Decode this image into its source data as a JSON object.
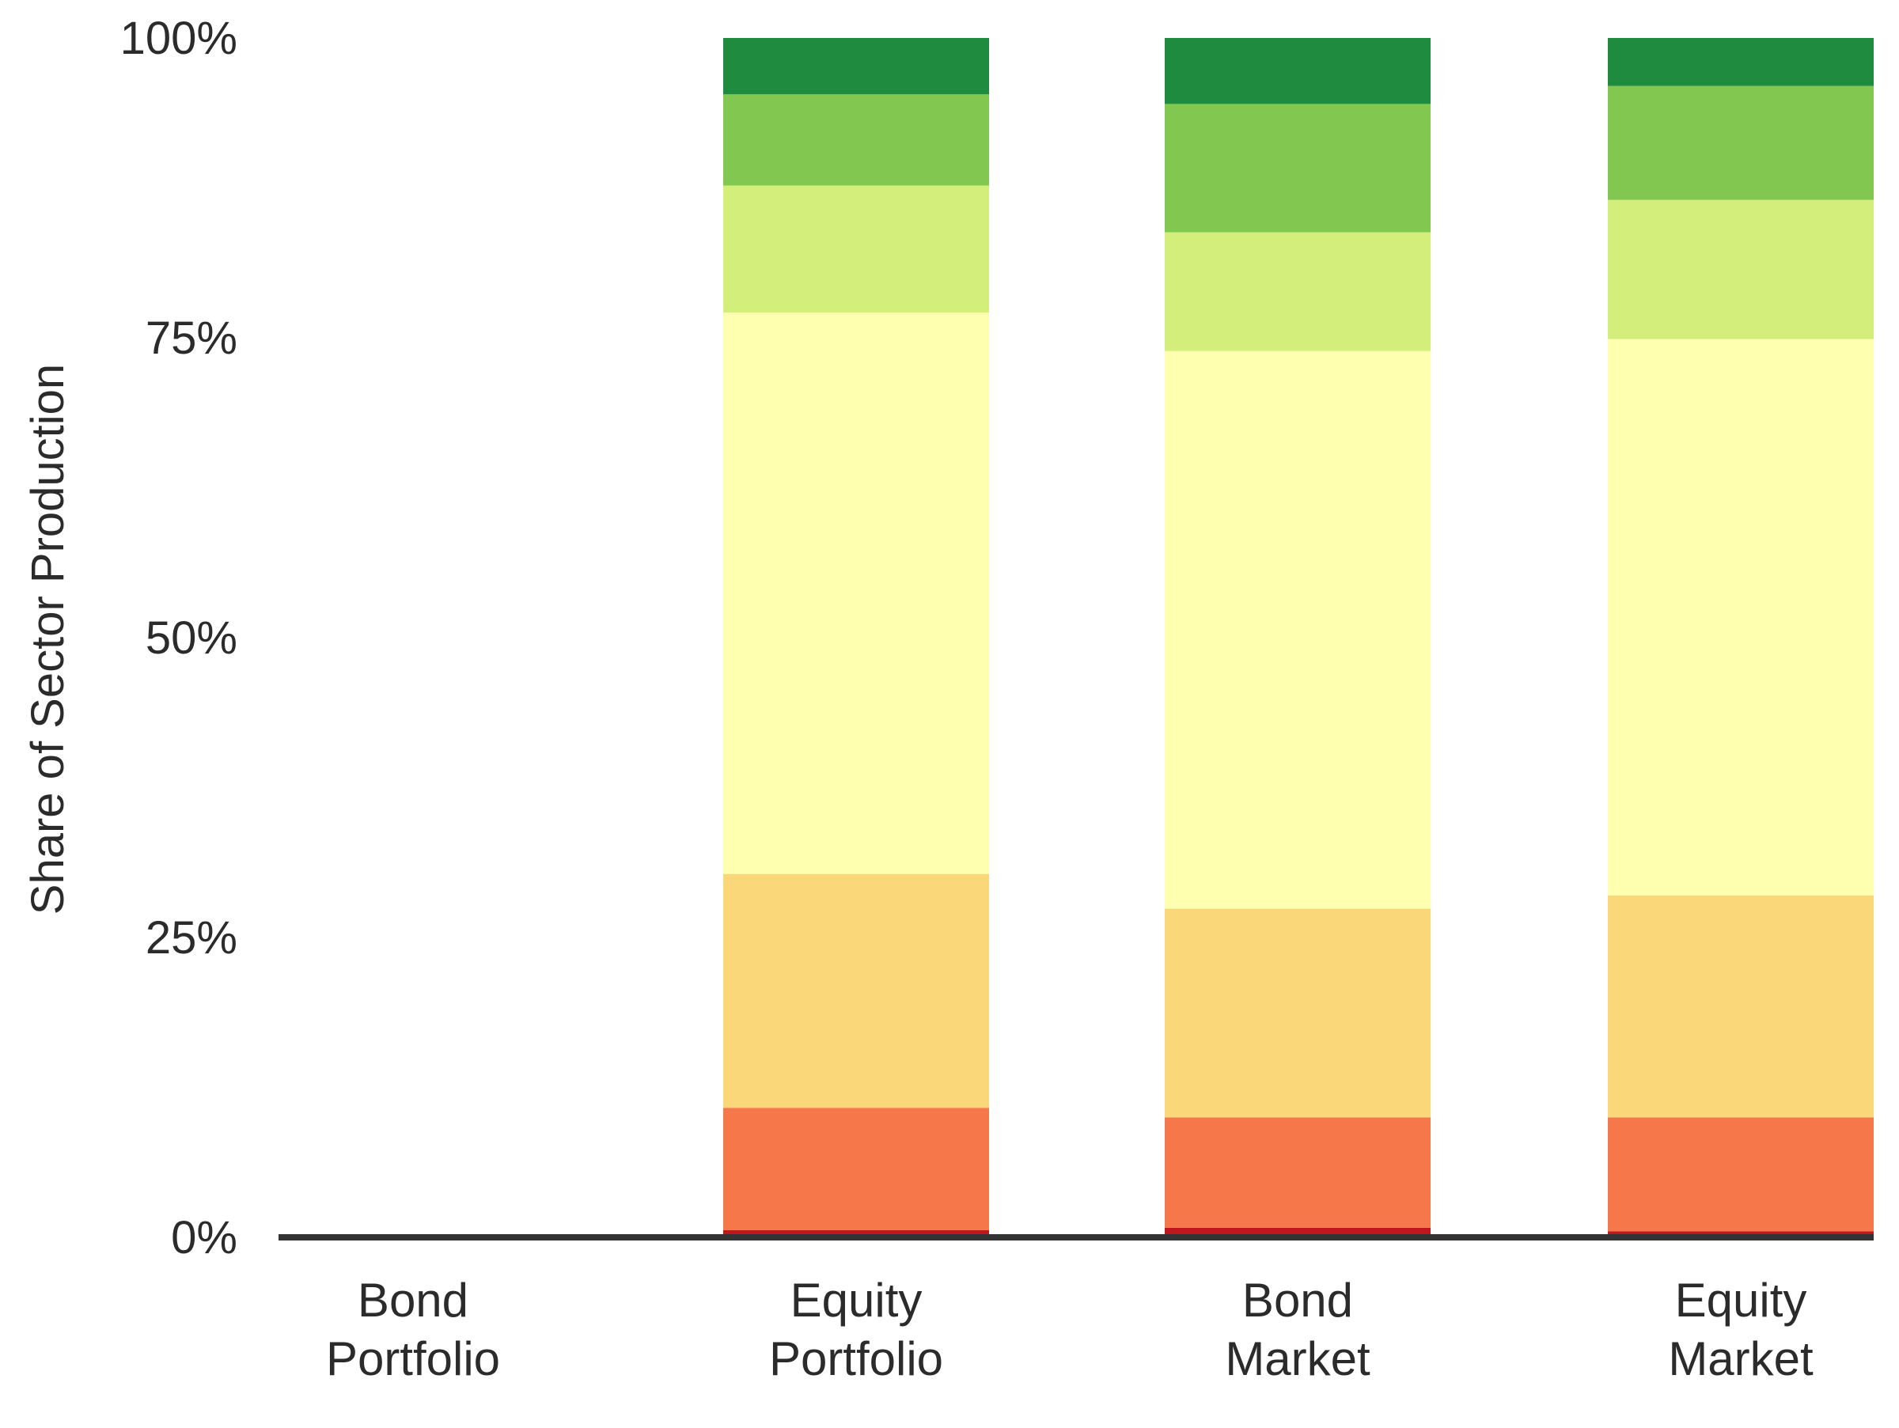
{
  "chart_data": {
    "type": "bar",
    "stacked": true,
    "percent_stacked": true,
    "ylabel": "Share of Sector Production",
    "ylim": [
      0,
      100
    ],
    "y_ticks": [
      0,
      25,
      50,
      75,
      100
    ],
    "y_tick_labels": [
      "0%",
      "25%",
      "50%",
      "75%",
      "100%"
    ],
    "categories": [
      [
        "Bond",
        "Portfolio"
      ],
      [
        "Equity",
        "Portfolio"
      ],
      [
        "Bond",
        "Market"
      ],
      [
        "Equity",
        "Market"
      ]
    ],
    "grid": false,
    "legend": "none",
    "series": [
      {
        "color": "#c0171f",
        "values": [
          0,
          0.6,
          0.8,
          0.5
        ]
      },
      {
        "color": "#f6784a",
        "values": [
          0,
          10.2,
          9.2,
          9.5
        ]
      },
      {
        "color": "#fad87a",
        "values": [
          0,
          19.5,
          17.4,
          18.5
        ]
      },
      {
        "color": "#feffaf",
        "values": [
          0,
          46.8,
          46.5,
          46.4
        ]
      },
      {
        "color": "#d4ee7c",
        "values": [
          0,
          10.6,
          9.9,
          11.6
        ]
      },
      {
        "color": "#82c850",
        "values": [
          0,
          7.6,
          10.7,
          9.5
        ]
      },
      {
        "color": "#1e8b3e",
        "values": [
          0,
          4.7,
          5.5,
          4.0
        ]
      }
    ]
  }
}
